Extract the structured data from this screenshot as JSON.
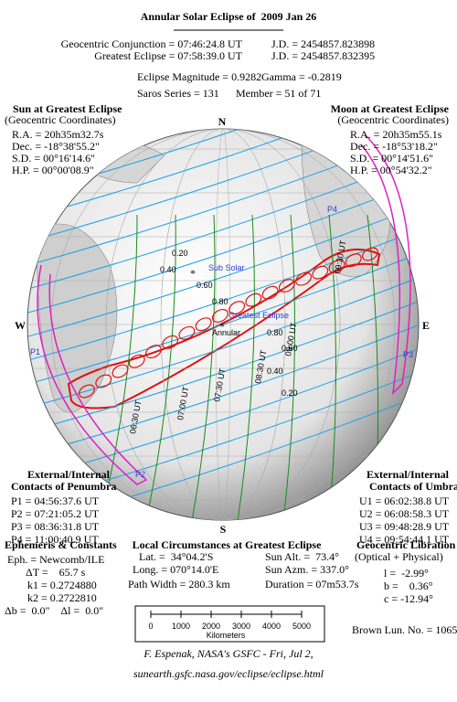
{
  "header": {
    "title": "Annular Solar Eclipse of  2009 Jan 26",
    "conjunction": "Geocentric Conjunction = 07:46:24.8 UT",
    "conjunction_jd": "J.D. = 2454857.823898",
    "greatest": "Greatest Eclipse = 07:58:39.0 UT",
    "greatest_jd": "J.D. = 2454857.832395",
    "magnitude": "Eclipse Magnitude = 0.9282",
    "gamma": "Gamma = -0.2819",
    "saros": "Saros Series = 131",
    "member": "Member = 51 of 71"
  },
  "sun": {
    "title": "Sun at Greatest Eclipse",
    "subtitle": "(Geocentric Coordinates)",
    "rows": [
      "R.A. = 20h35m32.7s",
      "Dec. = -18°38'55.2\"",
      "S.D. = 00°16'14.6\"",
      "H.P. = 00°00'08.9\""
    ]
  },
  "moon": {
    "title": "Moon at Greatest Eclipse",
    "subtitle": "(Geocentric Coordinates)",
    "rows": [
      "R.A. = 20h35m55.1s",
      "Dec. = -18°53'18.2\"",
      "S.D. = 00°14'51.6\"",
      "H.P. = 00°54'32.2\""
    ]
  },
  "compass": {
    "n": "N",
    "s": "S",
    "w": "W",
    "e": "E"
  },
  "map_labels": {
    "sub_solar": "Sub Solar",
    "greatest_eclipse": "Greatest Eclipse",
    "annular": "Annular",
    "p1": "P1",
    "p2": "P2",
    "p3": "P3",
    "p4": "P4",
    "contours": [
      "0.20",
      "0.40",
      "0.60",
      "0.80",
      "0.80",
      "0.60",
      "0.40",
      "0.20"
    ],
    "times": [
      "09:30 UT",
      "09:00 UT",
      "08:30 UT",
      "07:30 UT",
      "07:00 UT",
      "06:30 UT"
    ]
  },
  "penumbra": {
    "title": "External/Internal",
    "subtitle": "Contacts of Penumbra",
    "rows": [
      "P1 = 04:56:37.6 UT",
      "P2 = 07:21:05.2 UT",
      "P3 = 08:36:31.8 UT",
      "P4 = 11:00:40.9 UT"
    ]
  },
  "umbra": {
    "title": "External/Internal",
    "subtitle": "Contacts of Umbra",
    "rows": [
      "U1 = 06:02:38.8 UT",
      "U2 = 06:08:58.3 UT",
      "U3 = 09:48:28.9 UT",
      "U4 = 09:54:44.1 UT"
    ]
  },
  "local": {
    "title": "Local Circumstances at Greatest Eclipse",
    "rows": [
      "Lat. =  34°04.2'S",
      "Sun Alt. =  73.4°",
      "Long. = 070°14.0'E",
      "Sun Azm. = 337.0°",
      "Path Width = 280.3 km",
      "Duration = 07m53.7s"
    ]
  },
  "ephemeris": {
    "title": "Ephemeris & Constants",
    "rows": [
      "Eph. = Newcomb/ILE",
      "ΔT =    65.7 s",
      "k1 = 0.2724880",
      "k2 = 0.2722810",
      "Δb =  0.0\"    Δl =  0.0\""
    ]
  },
  "libration": {
    "title": "Geocentric Libration",
    "subtitle": "(Optical + Physical)",
    "rows": [
      "l =  -2.99°",
      "b =    0.36°",
      "c = -12.94°"
    ],
    "brown": "Brown Lun. No. = 1065"
  },
  "scale": {
    "ticks": [
      0,
      1000,
      2000,
      3000,
      4000,
      5000
    ],
    "unit": "Kilometers"
  },
  "footer": {
    "author": "F. Espenak, NASA's GSFC - Fri, Jul 2,",
    "url": "sunearth.gsfc.nasa.gov/eclipse/eclipse.html"
  }
}
